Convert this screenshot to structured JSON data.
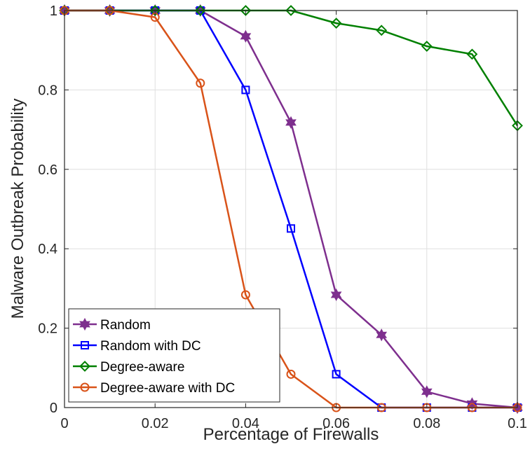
{
  "chart_data": {
    "type": "line",
    "xlabel": "Percentage of Firewalls",
    "ylabel": "Malware Outbreak Probability",
    "xlim": [
      0,
      0.1
    ],
    "ylim": [
      0,
      1
    ],
    "x_ticks": [
      "0",
      "0.02",
      "0.04",
      "0.06",
      "0.08",
      "0.1"
    ],
    "y_ticks": [
      "0",
      "0.2",
      "0.4",
      "0.6",
      "0.8",
      "1"
    ],
    "grid": true,
    "legend_position": "bottom-left",
    "x": [
      0,
      0.01,
      0.02,
      0.03,
      0.04,
      0.05,
      0.06,
      0.07,
      0.08,
      0.09,
      0.1
    ],
    "series": [
      {
        "name": "Random",
        "color": "#7E2F8E",
        "marker": "hexagram",
        "values": [
          1,
          1,
          1,
          1,
          0.935,
          0.718,
          0.284,
          0.183,
          0.04,
          0.01,
          0.0
        ]
      },
      {
        "name": "Random with DC",
        "color": "#0000FF",
        "marker": "square",
        "values": [
          1,
          1,
          1,
          1,
          0.8,
          0.451,
          0.084,
          0.0,
          0.0,
          0.0,
          0.0
        ]
      },
      {
        "name": "Degree-aware",
        "color": "#008000",
        "marker": "diamond",
        "values": [
          1,
          1,
          1,
          1,
          1,
          1,
          0.968,
          0.95,
          0.91,
          0.89,
          0.71
        ]
      },
      {
        "name": "Degree-aware with DC",
        "color": "#D95319",
        "marker": "circle",
        "values": [
          1,
          1,
          0.983,
          0.817,
          0.284,
          0.084,
          0.0,
          0.0,
          0.0,
          0.0,
          0.0
        ]
      }
    ]
  }
}
